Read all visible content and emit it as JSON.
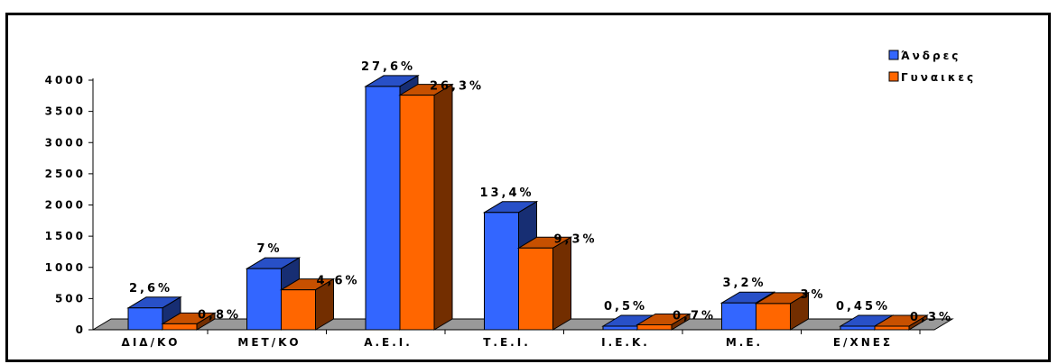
{
  "chart_data": {
    "type": "bar",
    "categories": [
      "ΔΙΔ/ΚΟ",
      "ΜΕΤ/ΚΟ",
      "Α.Ε.Ι.",
      "Τ.Ε.Ι.",
      "Ι.Ε.Κ.",
      "Μ.Ε.",
      "Ε/ΧΝΕΣ"
    ],
    "series": [
      {
        "name": "Άνδρες",
        "color": "#3366ff",
        "values": [
          350,
          980,
          3900,
          1880,
          50,
          430,
          30
        ],
        "labels": [
          "2,6%",
          "7%",
          "27,6%",
          "13,4%",
          "0,5%",
          "3,2%",
          "0,45%"
        ]
      },
      {
        "name": "Γυναικες",
        "color": "#ff6600",
        "values": [
          95,
          640,
          3760,
          1310,
          80,
          420,
          25
        ],
        "labels": [
          "0,8%",
          "4,6%",
          "26,3%",
          "9,3%",
          "0,7%",
          "3%",
          "0,3%"
        ]
      }
    ],
    "yticks": [
      0,
      500,
      1000,
      1500,
      2000,
      2500,
      3000,
      3500,
      4000
    ],
    "ylim": [
      0,
      4000
    ],
    "legend": "top-right",
    "grid": false,
    "floor_color": "#999999"
  }
}
